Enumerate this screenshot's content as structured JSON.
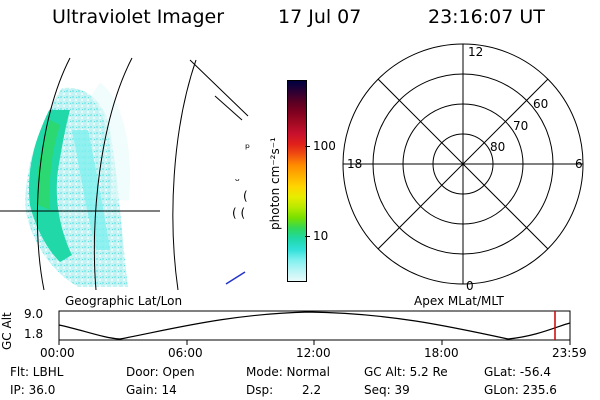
{
  "header": {
    "instrument": "Ultraviolet Imager",
    "date": "17 Jul 07",
    "time": "23:16:07 UT"
  },
  "colorbar": {
    "label": "photon cm⁻²s⁻¹",
    "scale": "log",
    "ticks": [
      "100",
      "10"
    ],
    "colors": [
      "#000040",
      "#2b0033",
      "#5a0022",
      "#800020",
      "#a30a22",
      "#c8102e",
      "#e0201a",
      "#f05010",
      "#ff8c00",
      "#ffb000",
      "#ffd400",
      "#e8ec00",
      "#b8ea00",
      "#78e000",
      "#30d85a",
      "#20d8a8",
      "#30e0d8",
      "#7ff0ef",
      "#b8f4f4",
      "#e8fafa"
    ]
  },
  "left_panel": {
    "title": "Geographic Lat/Lon",
    "edge_marks": [
      "ᵖ",
      "ᵕ",
      "(",
      "( ("
    ]
  },
  "right_panel": {
    "title": "Apex MLat/MLT",
    "mlt_labels": {
      "top": "12",
      "left": "18",
      "right": "6",
      "bottom": "0"
    },
    "mlat_labels": [
      "60",
      "70",
      "80"
    ]
  },
  "timeline": {
    "axis_label": "GC Alt",
    "y_ticks": [
      "9.0",
      "1.8"
    ],
    "x_ticks": [
      "00:00",
      "06:00",
      "12:00",
      "18:00",
      "23:59"
    ],
    "cursor_color": "#cc0000"
  },
  "footer": {
    "flt": "Flt: LBHL",
    "ip": "IP: 36.0",
    "door": "Door: Open",
    "gain": "Gain: 14",
    "mode": "Mode: Normal",
    "dsp": "Dsp:",
    "dsp_value": "2.2",
    "gc_alt": "GC Alt: 5.2 Re",
    "seq": "Seq: 39",
    "glat": "GLat: -56.4",
    "glon": "GLon: 235.6"
  }
}
